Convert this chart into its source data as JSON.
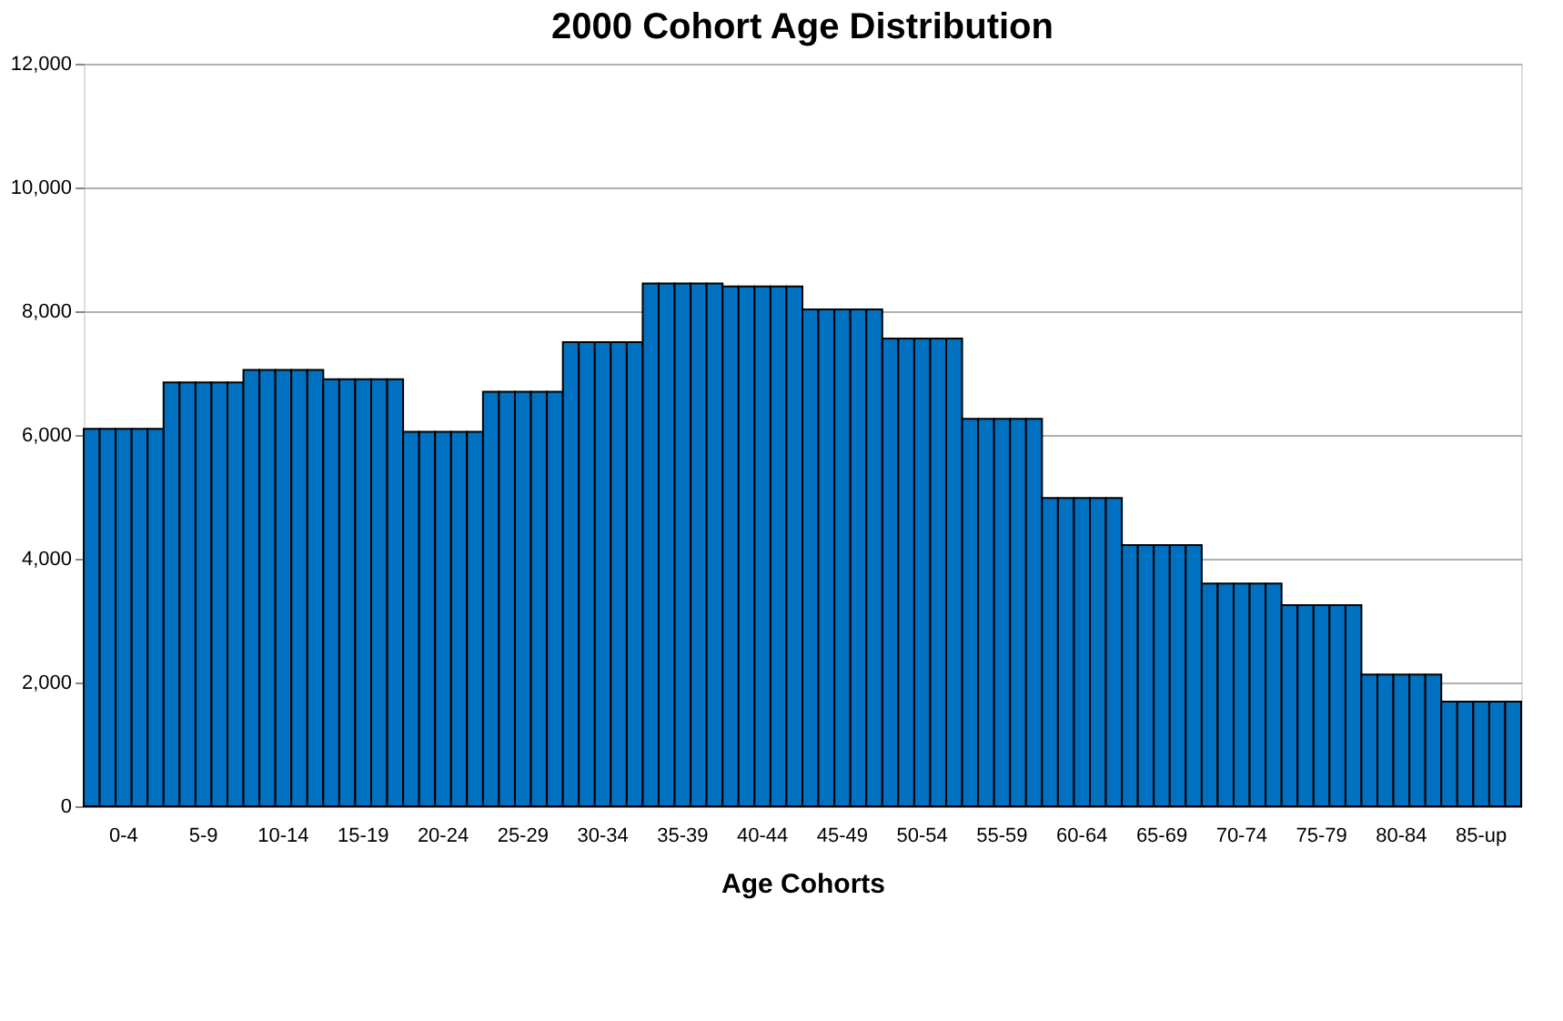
{
  "chart_data": {
    "type": "bar",
    "title": "2000 Cohort Age Distribution",
    "xlabel": "Age Cohorts",
    "categories": [
      null,
      null,
      "0-4",
      null,
      null,
      null,
      null,
      "5-9",
      null,
      null,
      null,
      null,
      "10-14",
      null,
      null,
      null,
      null,
      "15-19",
      null,
      null,
      null,
      null,
      "20-24",
      null,
      null,
      null,
      null,
      "25-29",
      null,
      null,
      null,
      null,
      "30-34",
      null,
      null,
      null,
      null,
      "35-39",
      null,
      null,
      null,
      null,
      "40-44",
      null,
      null,
      null,
      null,
      "45-49",
      null,
      null,
      null,
      null,
      "50-54",
      null,
      null,
      null,
      null,
      "55-59",
      null,
      null,
      null,
      null,
      "60-64",
      null,
      null,
      null,
      null,
      "65-69",
      null,
      null,
      null,
      null,
      "70-74",
      null,
      null,
      null,
      null,
      "75-79",
      null,
      null,
      null,
      null,
      "80-84",
      null,
      null,
      null,
      null,
      "85-up",
      null,
      null
    ],
    "values": [
      6100,
      6100,
      6100,
      6100,
      6100,
      6850,
      6850,
      6850,
      6850,
      6850,
      7050,
      7050,
      7050,
      7050,
      7050,
      6900,
      6900,
      6900,
      6900,
      6900,
      6050,
      6050,
      6050,
      6050,
      6050,
      6700,
      6700,
      6700,
      6700,
      6700,
      7500,
      7500,
      7500,
      7500,
      7500,
      8450,
      8450,
      8450,
      8450,
      8450,
      8400,
      8400,
      8400,
      8400,
      8400,
      8030,
      8030,
      8030,
      8030,
      8030,
      7560,
      7560,
      7560,
      7560,
      7560,
      6260,
      6260,
      6260,
      6260,
      6260,
      4980,
      4980,
      4980,
      4980,
      4980,
      4220,
      4220,
      4220,
      4220,
      4220,
      3600,
      3600,
      3600,
      3600,
      3600,
      3250,
      3250,
      3250,
      3250,
      3250,
      2130,
      2130,
      2130,
      2130,
      2130,
      1690,
      1690,
      1690,
      1690,
      1690
    ],
    "color": "#0070c0",
    "ylim": [
      0,
      12000
    ],
    "yticks": [
      0,
      {
        "value": 2000,
        "label": "2,000"
      },
      {
        "value": 4000,
        "label": "4,000"
      },
      {
        "value": 6000,
        "label": "6,000"
      },
      {
        "value": 8000,
        "label": "8,000"
      },
      {
        "value": 10000,
        "label": "10,000"
      },
      {
        "value": 12000,
        "label": "12,000"
      }
    ],
    "grid": "y"
  }
}
